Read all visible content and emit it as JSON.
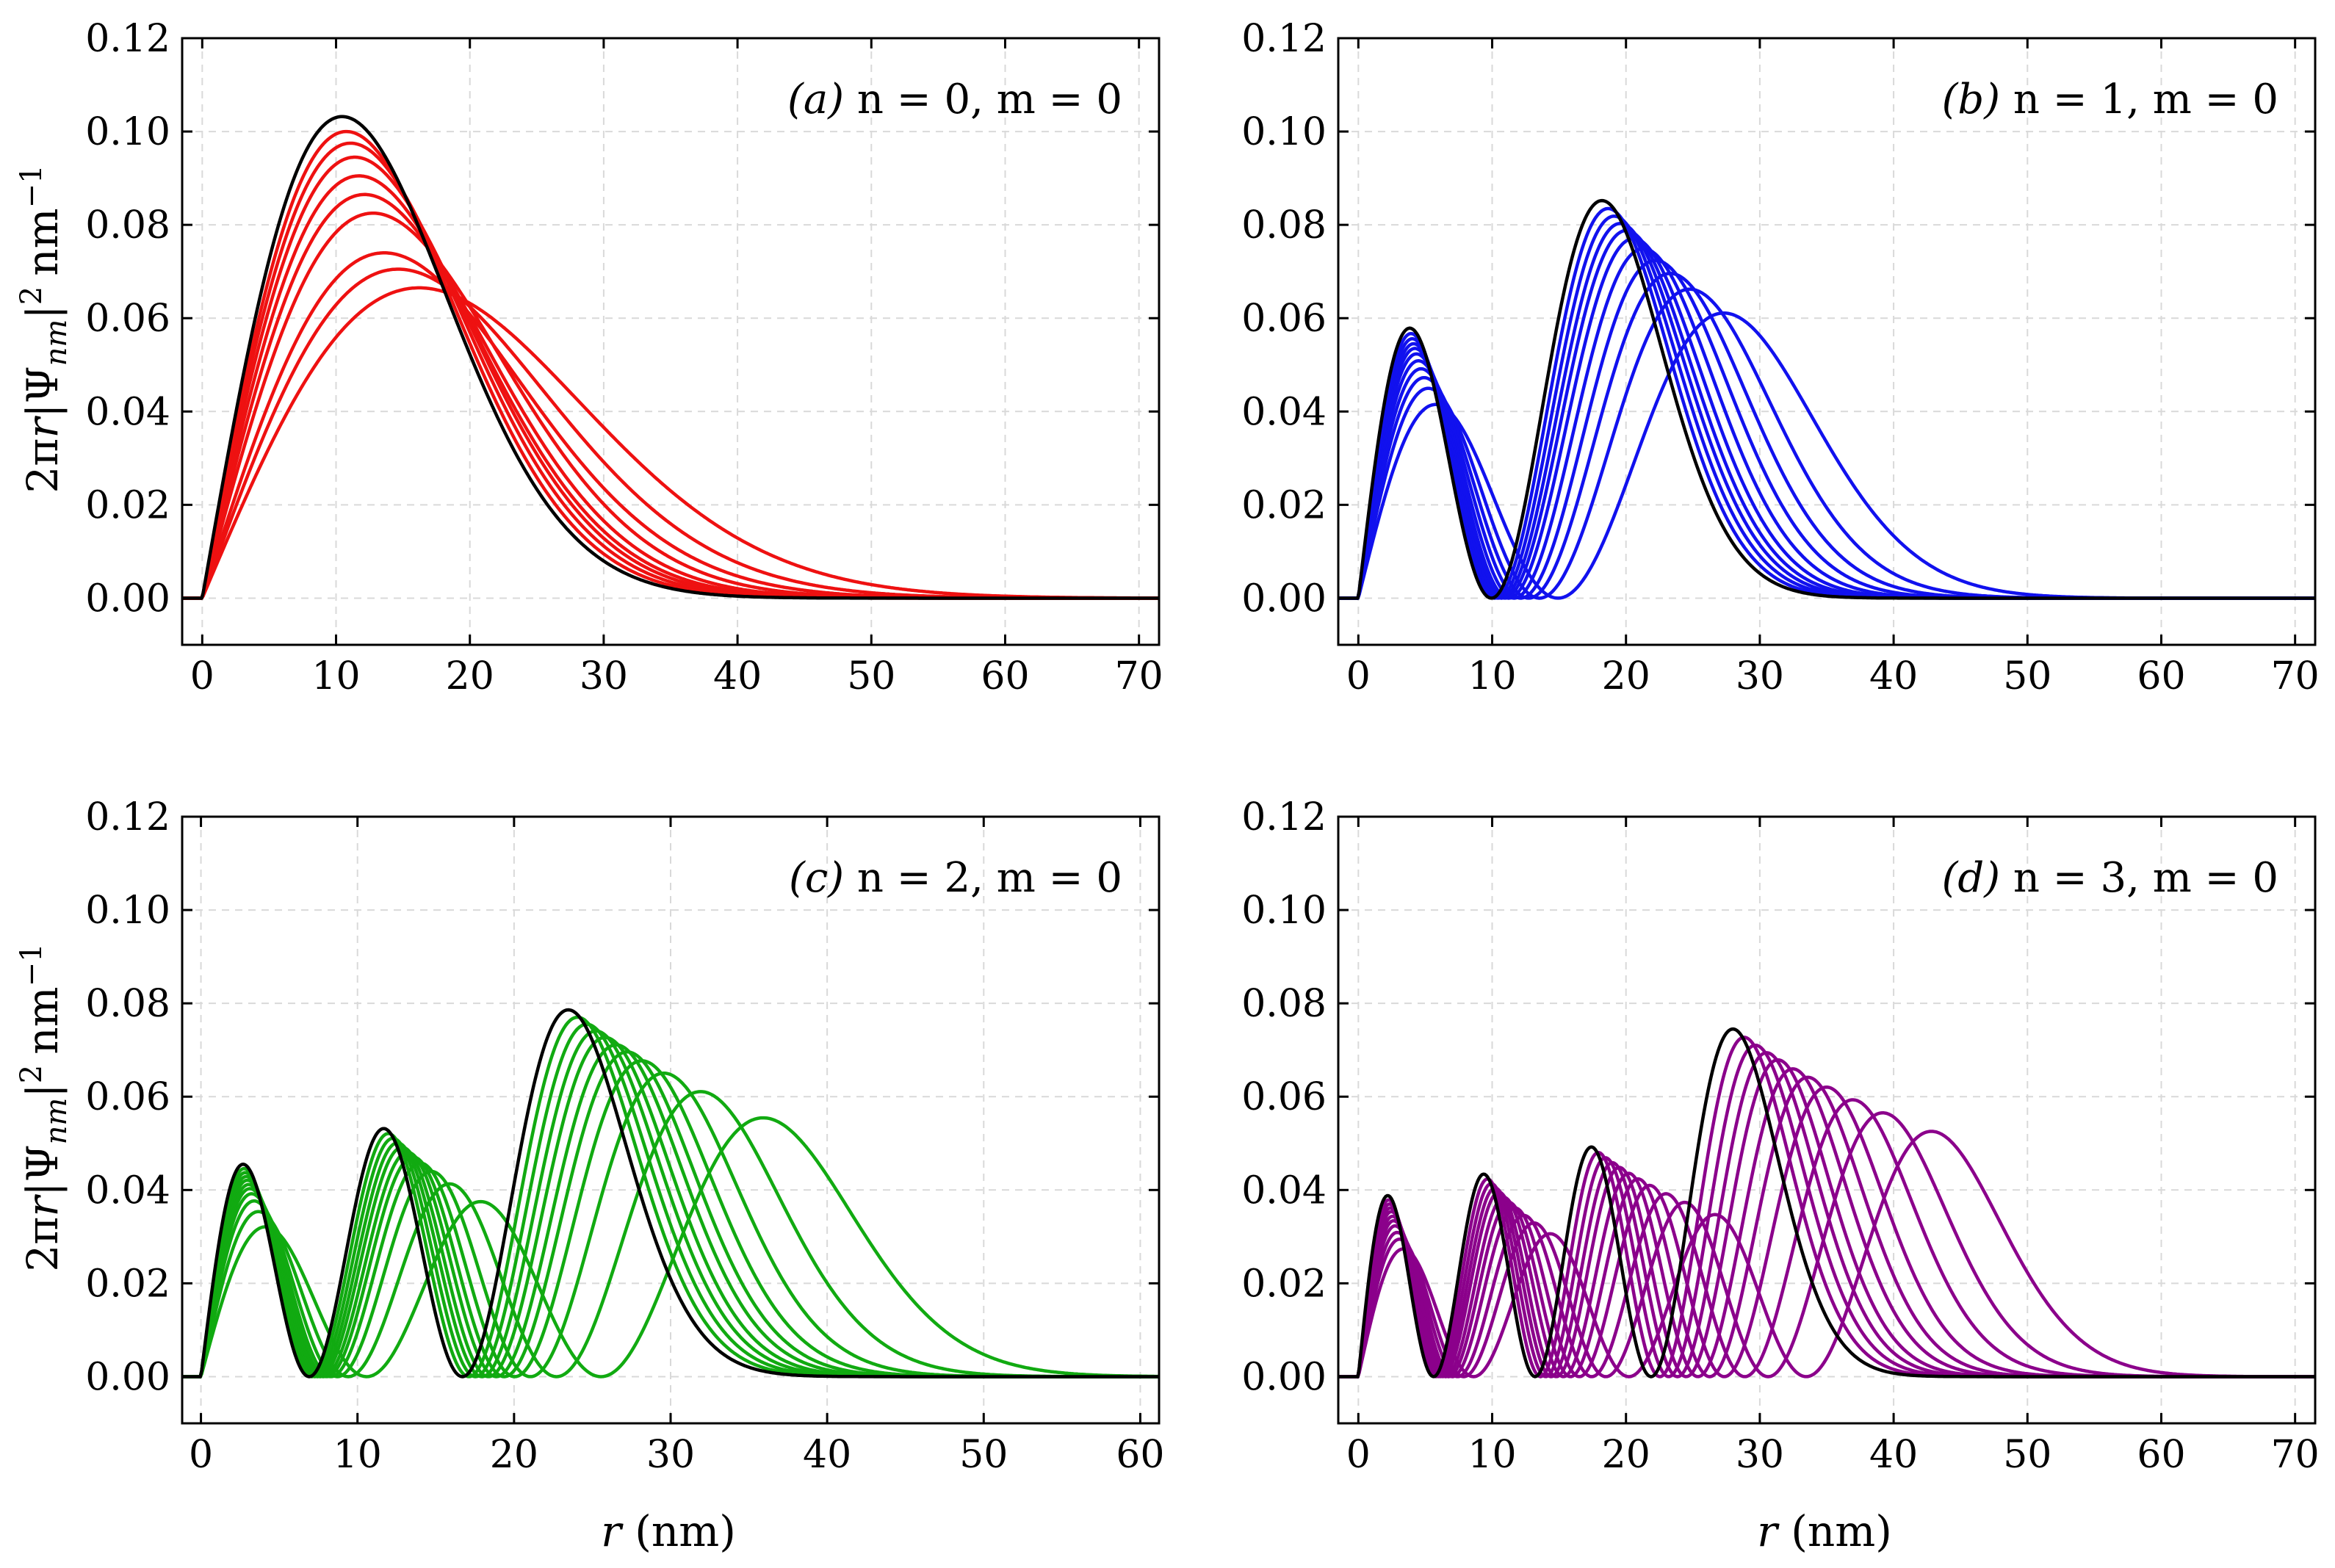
{
  "figure": {
    "ylabel_prefix": "2π",
    "ylabel_r": "r",
    "ylabel_bar_open": "|Ψ",
    "ylabel_sub": "nm",
    "ylabel_bar_close": "|",
    "ylabel_sup": "2",
    "ylabel_unit": "nm",
    "ylabel_unit_sup": "−1",
    "xlabel_var": "r",
    "xlabel_unit": "(nm)"
  },
  "chart_data": [
    {
      "type": "line",
      "label_tag": "(a)",
      "label_n": "n = 0,",
      "label_m": "m = 0",
      "n": 0,
      "xlim": [
        -1.5,
        71.5
      ],
      "ylim": [
        -0.01,
        0.12
      ],
      "xticks": [
        0,
        10,
        20,
        30,
        40,
        50,
        60,
        70
      ],
      "xtick_labels": [
        "0",
        "10",
        "20",
        "30",
        "40",
        "50",
        "60",
        "70"
      ],
      "yticks": [
        0.0,
        0.02,
        0.04,
        0.06,
        0.08,
        0.1,
        0.12
      ],
      "ytick_labels": [
        "0.00",
        "0.02",
        "0.04",
        "0.06",
        "0.08",
        "0.10",
        "0.12"
      ],
      "grid": true,
      "colors": {
        "family": "#ee1111",
        "reference": "#000000"
      },
      "peak_scale": [
        1.0,
        1.03,
        1.06,
        1.09,
        1.12,
        1.16,
        1.22,
        1.3,
        1.4,
        1.55
      ],
      "peak_heights": [
        0.1032,
        0.1,
        0.0975,
        0.0945,
        0.0905,
        0.0865,
        0.0825,
        0.074,
        0.0705,
        0.0665
      ]
    },
    {
      "type": "line",
      "label_tag": "(b)",
      "label_n": "n = 1,",
      "label_m": "m = 0",
      "n": 1,
      "xlim": [
        -1.5,
        71.5
      ],
      "ylim": [
        -0.01,
        0.12
      ],
      "xticks": [
        0,
        10,
        20,
        30,
        40,
        50,
        60,
        70
      ],
      "xtick_labels": [
        "0",
        "10",
        "20",
        "30",
        "40",
        "50",
        "60",
        "70"
      ],
      "yticks": [
        0.0,
        0.02,
        0.04,
        0.06,
        0.08,
        0.1,
        0.12
      ],
      "ytick_labels": [
        "0.00",
        "0.02",
        "0.04",
        "0.06",
        "0.08",
        "0.10",
        "0.12"
      ],
      "grid": true,
      "colors": {
        "family": "#1111ee",
        "reference": "#000000"
      },
      "peak_scale": [
        1.0,
        1.025,
        1.05,
        1.075,
        1.1,
        1.13,
        1.17,
        1.22,
        1.28,
        1.36,
        1.5
      ],
      "lobe_peak_x": [
        6.8,
        18.2
      ],
      "lobe_peak_y": [
        0.0637,
        0.0852
      ]
    },
    {
      "type": "line",
      "label_tag": "(c)",
      "label_n": "n = 2,",
      "label_m": "m = 0",
      "n": 2,
      "xlim": [
        -1.2,
        61.2
      ],
      "ylim": [
        -0.01,
        0.12
      ],
      "xticks": [
        0,
        10,
        20,
        30,
        40,
        50,
        60
      ],
      "xtick_labels": [
        "0",
        "10",
        "20",
        "30",
        "40",
        "50",
        "60"
      ],
      "yticks": [
        0.0,
        0.02,
        0.04,
        0.06,
        0.08,
        0.1,
        0.12
      ],
      "ytick_labels": [
        "0.00",
        "0.02",
        "0.04",
        "0.06",
        "0.08",
        "0.10",
        "0.12"
      ],
      "grid": true,
      "colors": {
        "family": "#11aa11",
        "reference": "#000000"
      },
      "peak_scale": [
        1.0,
        1.025,
        1.05,
        1.075,
        1.1,
        1.13,
        1.16,
        1.2,
        1.26,
        1.36,
        1.53
      ],
      "lobe_peak_x": [
        5.5,
        13.6,
        23.5
      ],
      "lobe_peak_y": [
        0.0512,
        0.053,
        0.0786
      ]
    },
    {
      "type": "line",
      "label_tag": "(d)",
      "label_n": "n = 3,",
      "label_m": "m = 0",
      "n": 3,
      "xlim": [
        -1.5,
        71.5
      ],
      "ylim": [
        -0.01,
        0.12
      ],
      "xticks": [
        0,
        10,
        20,
        30,
        40,
        50,
        60,
        70
      ],
      "xtick_labels": [
        "0",
        "10",
        "20",
        "30",
        "40",
        "50",
        "60",
        "70"
      ],
      "yticks": [
        0.0,
        0.02,
        0.04,
        0.06,
        0.08,
        0.1,
        0.12
      ],
      "ytick_labels": [
        "0.00",
        "0.02",
        "0.04",
        "0.06",
        "0.08",
        "0.10",
        "0.12"
      ],
      "grid": true,
      "colors": {
        "family": "#8b008b",
        "reference": "#000000"
      },
      "peak_scale": [
        1.0,
        1.03,
        1.06,
        1.09,
        1.12,
        1.16,
        1.2,
        1.25,
        1.32,
        1.4,
        1.53
      ],
      "lobe_peak_x": [
        4.8,
        11.6,
        18.8,
        28.0
      ],
      "lobe_peak_y": [
        0.0445,
        0.0435,
        0.049,
        0.0745
      ]
    }
  ]
}
